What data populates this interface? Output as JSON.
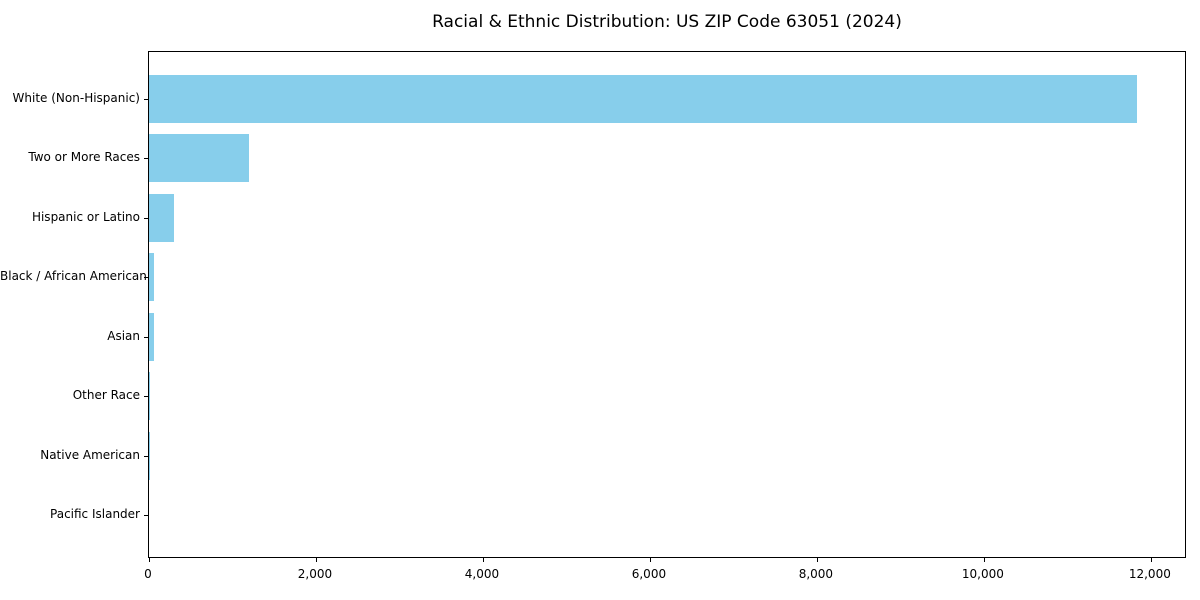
{
  "chart_data": {
    "type": "bar",
    "orientation": "horizontal",
    "title": "Racial & Ethnic Distribution: US ZIP Code 63051 (2024)",
    "categories": [
      "White (Non-Hispanic)",
      "Two or More Races",
      "Hispanic or Latino",
      "Black / African American",
      "Asian",
      "Other Race",
      "Native American",
      "Pacific Islander"
    ],
    "values": [
      11840,
      1200,
      300,
      65,
      60,
      15,
      5,
      0
    ],
    "xlabel": "",
    "ylabel": "",
    "xlim": [
      0,
      12433
    ],
    "x_ticks": [
      0,
      2000,
      4000,
      6000,
      8000,
      10000,
      12000
    ],
    "x_tick_labels": [
      "0",
      "2,000",
      "4,000",
      "6,000",
      "8,000",
      "10,000",
      "12,000"
    ],
    "grid": false,
    "legend": null,
    "bar_color": "#87CEEB",
    "axis_color": "#000000",
    "background_color": "#FFFFFF"
  }
}
